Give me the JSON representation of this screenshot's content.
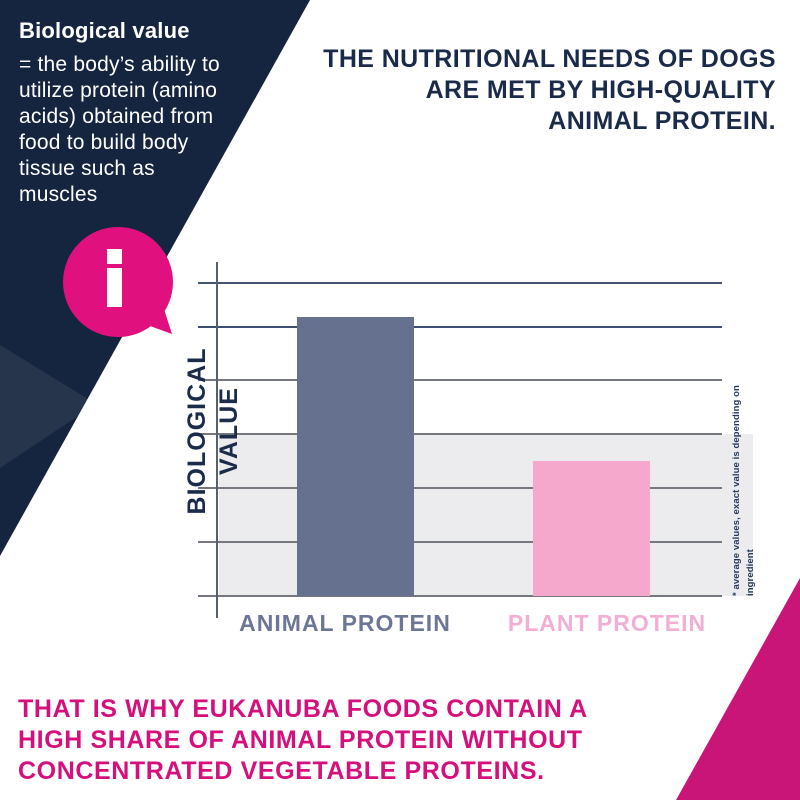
{
  "info_panel": {
    "title": "Biological value",
    "body": "= the body’s ability to\nutilize protein (amino\nacids) obtained from\nfood to build body\ntissue such as\nmuscles",
    "icon": "info-icon"
  },
  "headline": "THE NUTRITIONAL NEEDS OF DOGS\nARE MET BY HIGH-QUALITY\nANIMAL PROTEIN.",
  "conclusion": "THAT IS WHY EUKANUBA FOODS CONTAIN A\nHIGH SHARE OF ANIMAL PROTEIN WITHOUT\nCONCENTRATED VEGETABLE PROTEINS.",
  "chart_data": {
    "type": "bar",
    "title": "",
    "xlabel": "",
    "ylabel": "BIOLOGICAL VALUE",
    "categories": [
      "ANIMAL PROTEIN",
      "PLANT PROTEIN"
    ],
    "values": [
      89,
      43
    ],
    "ylim": [
      0,
      100
    ],
    "axis_numeric_labels": false,
    "grid": true,
    "legend": false,
    "footnote": "* average values, exact value is depending on ingredient",
    "bar_colors": [
      "#65718F",
      "#F5A8CC"
    ],
    "category_label_colors": [
      "#6C7797",
      "#F2AED3"
    ]
  },
  "colors": {
    "navy": "#16253F",
    "navy_facet_highlight": "#2A3A58",
    "headline_navy": "#1A2B4A",
    "magenta_bubble": "#E0107F",
    "magenta_triangle": "#CA1578",
    "magenta_text": "#D50F7B",
    "animal_bar": "#65718F",
    "plant_bar": "#F5A8CC",
    "gray_band": "#ECECEE",
    "white": "#FFFFFF"
  }
}
